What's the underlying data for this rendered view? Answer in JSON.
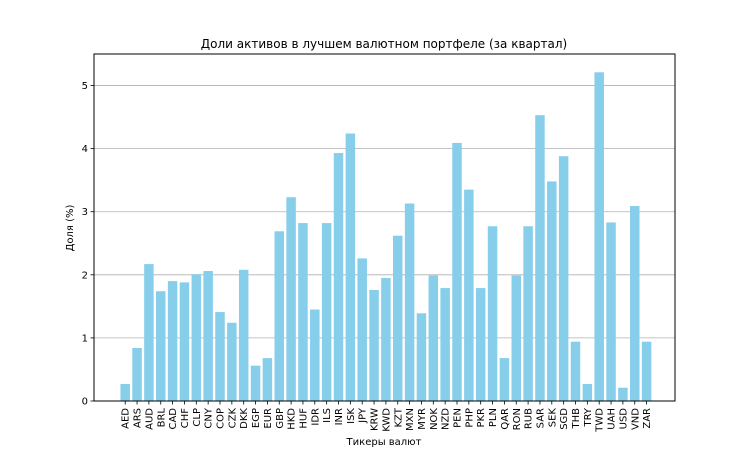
{
  "chart_data": {
    "type": "bar",
    "title": "Доли активов в лучшем валютном портфеле (за квартал)",
    "xlabel": "Тикеры валют",
    "ylabel": "Доля (%)",
    "ylim": [
      0,
      5.5
    ],
    "yticks": [
      0,
      1,
      2,
      3,
      4,
      5
    ],
    "grid": "y",
    "bar_color": "#87CEEB",
    "categories": [
      "AED",
      "ARS",
      "AUD",
      "BRL",
      "CAD",
      "CHF",
      "CLP",
      "CNY",
      "COP",
      "CZK",
      "DKK",
      "EGP",
      "EUR",
      "GBP",
      "HKD",
      "HUF",
      "IDR",
      "ILS",
      "INR",
      "ISK",
      "JPY",
      "KRW",
      "KWD",
      "KZT",
      "MXN",
      "MYR",
      "NOK",
      "NZD",
      "PEN",
      "PHP",
      "PKR",
      "PLN",
      "QAR",
      "RON",
      "RUB",
      "SAR",
      "SEK",
      "SGD",
      "THB",
      "TRY",
      "TWD",
      "UAH",
      "USD",
      "VND",
      "ZAR"
    ],
    "values": [
      0.27,
      0.84,
      2.17,
      1.74,
      1.9,
      1.88,
      2.01,
      2.06,
      1.41,
      1.24,
      2.08,
      0.56,
      0.68,
      2.69,
      3.23,
      2.82,
      1.45,
      2.82,
      3.93,
      4.24,
      2.26,
      1.76,
      1.95,
      2.62,
      3.13,
      1.39,
      1.99,
      1.79,
      4.09,
      3.35,
      1.79,
      2.77,
      0.68,
      1.99,
      2.77,
      4.53,
      3.48,
      3.88,
      0.94,
      0.27,
      5.21,
      2.83,
      0.21,
      3.09,
      0.94
    ]
  }
}
